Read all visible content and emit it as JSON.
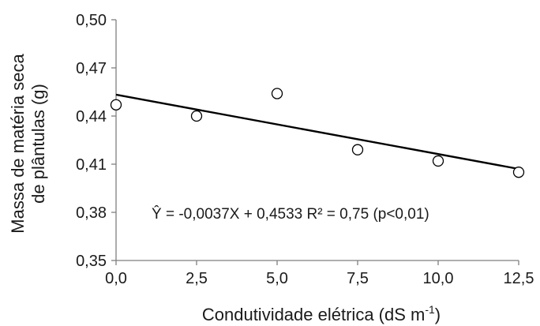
{
  "chart_data": {
    "type": "scatter",
    "xlabel": "Condutividade elétrica (dS m",
    "xlabel_superscript": "-1",
    "xlabel_close": ")",
    "ylabel_line1": "Massa de matéria seca",
    "ylabel_line2": "de plântulas (g)",
    "xlim": [
      0,
      12.5
    ],
    "ylim": [
      0.35,
      0.5
    ],
    "x_ticks": [
      "0,0",
      "2,5",
      "5,0",
      "7,5",
      "10,0",
      "12,5"
    ],
    "y_ticks": [
      "0,35",
      "0,38",
      "0,41",
      "0,44",
      "0,47",
      "0,50"
    ],
    "grid": false,
    "series": [
      {
        "x": [
          0,
          2.5,
          5,
          7.5,
          10,
          12.5
        ],
        "y": [
          0.447,
          0.44,
          0.454,
          0.419,
          0.412,
          0.405
        ],
        "marker": "open-circle"
      }
    ],
    "trendline": {
      "intercept": 0.4533,
      "slope": -0.0037,
      "x_range": [
        0,
        12.5
      ],
      "color": "#000000"
    },
    "annotation": "Ŷ = -0,0037X + 0,4533  R² = 0,75 (p<0,01)",
    "colors": {
      "axis": "#7f7f7f",
      "text": "#1a1a1a",
      "markers": "#000000"
    }
  }
}
